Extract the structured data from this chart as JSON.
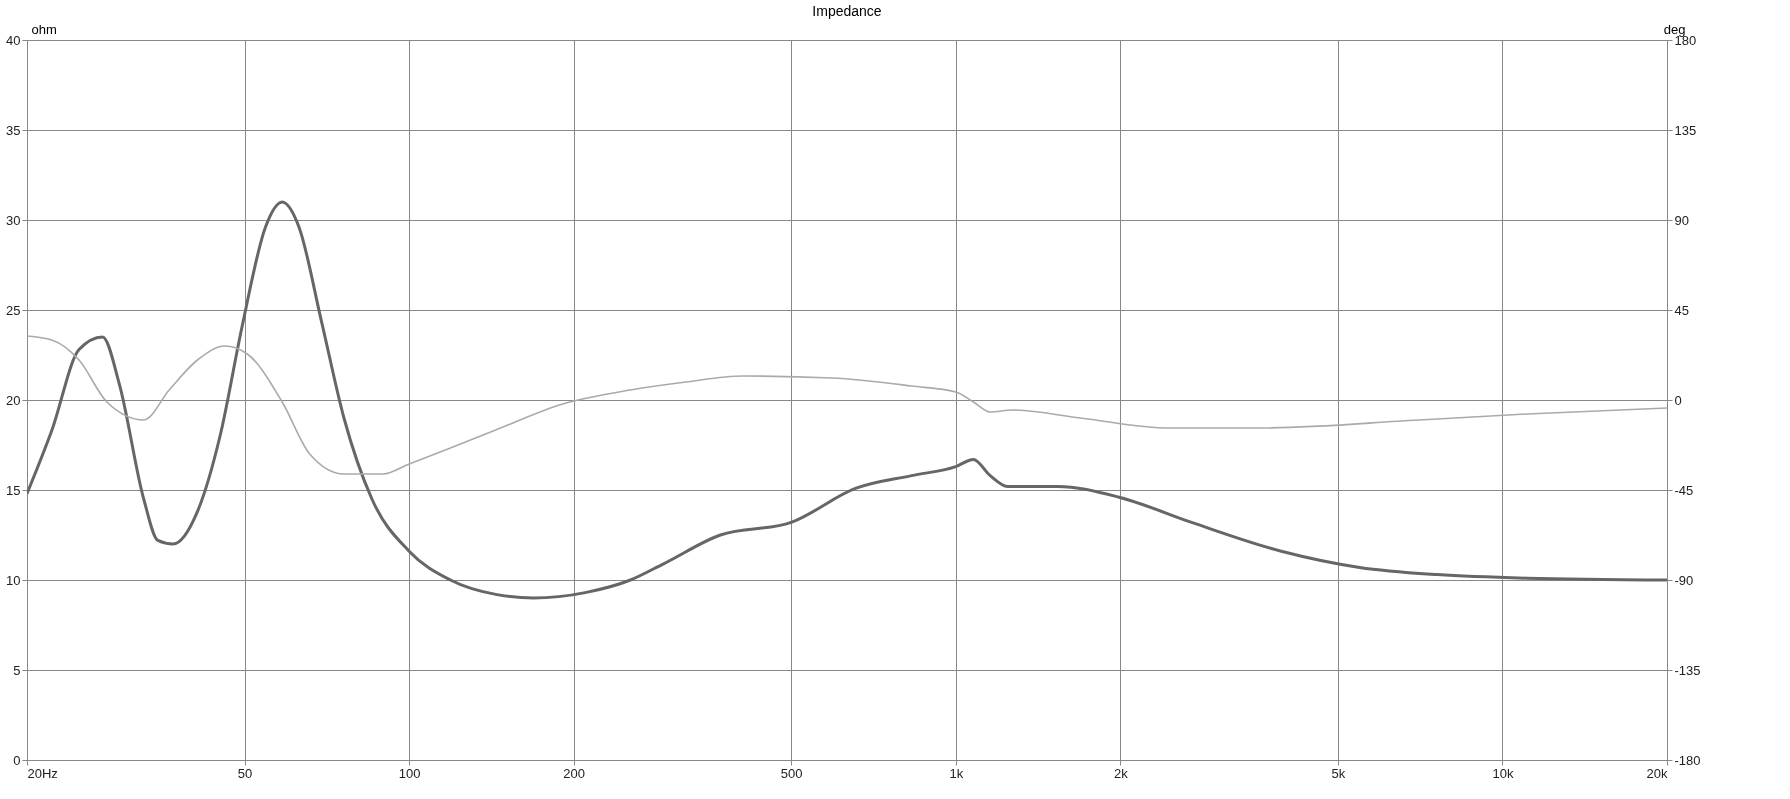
{
  "chart_data": {
    "type": "line",
    "title": "Impedance",
    "ylabel": "ohm",
    "y2label": "deg",
    "xlim": [
      20,
      20000
    ],
    "log": "x",
    "xticks": [
      {
        "value": 20,
        "label": "20Hz"
      },
      50,
      100,
      200,
      500,
      {
        "value": 1000,
        "label": "1k"
      },
      {
        "value": 2000,
        "label": "2k"
      },
      {
        "value": 5000,
        "label": "5k"
      },
      {
        "value": 10000,
        "label": "10k"
      },
      {
        "value": 20000,
        "label": "20k"
      }
    ],
    "ylim": [
      0,
      40
    ],
    "yticks": [
      0,
      5,
      10,
      15,
      20,
      25,
      30,
      35,
      40
    ],
    "y2lim": [
      -180,
      180
    ],
    "y2ticks": [
      -180,
      -135,
      -90,
      -45,
      0,
      45,
      90,
      135,
      180
    ],
    "grid": true,
    "line_style": "solid",
    "marker": "none",
    "series": [
      {
        "color": "#666666",
        "x": [
          20,
          22.2,
          24.9,
          27.5,
          29.5,
          32.7,
          34.7,
          37,
          41,
          45.1,
          49.5,
          54.6,
          58.6,
          62.9,
          69.1,
          76,
          85.5,
          100,
          119,
          144,
          169,
          210,
          254,
          292,
          371,
          500,
          657,
          830,
          1000,
          1077,
          1156,
          1243,
          1534,
          1990,
          2700,
          3940,
          5480,
          7600,
          11100,
          20000
        ],
        "values": [
          14.8,
          18.3,
          22.8,
          23.5,
          20.9,
          14.5,
          12.2,
          12.0,
          13.8,
          18.0,
          24.1,
          29.6,
          31.0,
          29.6,
          24.4,
          19.0,
          14.5,
          11.6,
          10.0,
          9.2,
          9.0,
          9.3,
          10.0,
          10.9,
          12.5,
          13.2,
          15.1,
          15.8,
          16.3,
          16.7,
          15.8,
          15.2,
          15.2,
          14.6,
          13.2,
          11.6,
          10.7,
          10.3,
          10.1,
          10.0
        ]
      },
      {
        "color": "#aaaaaa",
        "axis": "y2",
        "x": [
          20,
          22.2,
          24.9,
          28,
          32.7,
          36.4,
          41,
          46,
          50.6,
          58.6,
          65.8,
          76,
          89.6,
          100,
          119,
          144,
          191,
          254,
          321,
          408,
          594,
          830,
          1000,
          1077,
          1156,
          1270,
          1690,
          2460,
          3590,
          7030,
          11100,
          20000
        ],
        "values": [
          32,
          30,
          20,
          -1,
          -10,
          5,
          20,
          27,
          23,
          -1,
          -27,
          -37,
          -37,
          -32,
          -24,
          -15,
          -2,
          5,
          9,
          12,
          11,
          7,
          4,
          -1,
          -6,
          -5,
          -9,
          -14,
          -14,
          -10,
          -7,
          -4
        ]
      }
    ]
  }
}
